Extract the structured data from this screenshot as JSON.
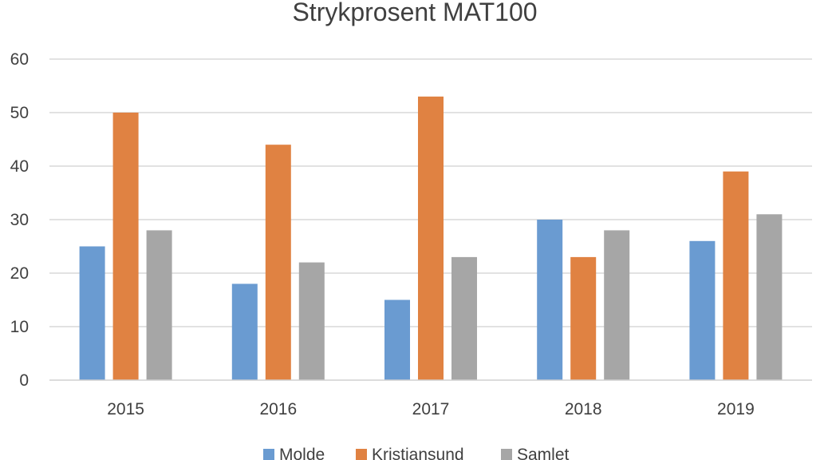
{
  "chart_data": {
    "type": "bar",
    "title": "Strykprosent MAT100",
    "xlabel": "",
    "ylabel": "",
    "categories": [
      "2015",
      "2016",
      "2017",
      "2018",
      "2019"
    ],
    "series": [
      {
        "name": "Molde",
        "color": "#6a9bd1",
        "values": [
          25,
          18,
          15,
          30,
          26
        ]
      },
      {
        "name": "Kristiansund",
        "color": "#e08242",
        "values": [
          50,
          44,
          53,
          23,
          39
        ]
      },
      {
        "name": "Samlet",
        "color": "#a6a6a6",
        "values": [
          28,
          22,
          23,
          28,
          31
        ]
      }
    ],
    "ylim": [
      0,
      60
    ],
    "yticks": [
      0,
      10,
      20,
      30,
      40,
      50,
      60
    ],
    "grid": true,
    "legend_position": "bottom"
  }
}
